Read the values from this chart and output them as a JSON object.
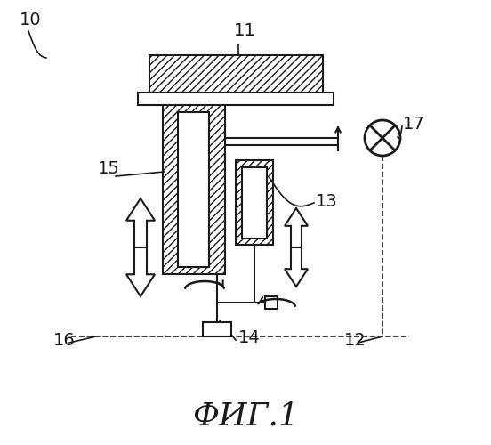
{
  "bg_color": "#ffffff",
  "line_color": "#1a1a1a",
  "title_fontsize": 26,
  "figsize": [
    5.52,
    5.0
  ],
  "dpi": 100
}
